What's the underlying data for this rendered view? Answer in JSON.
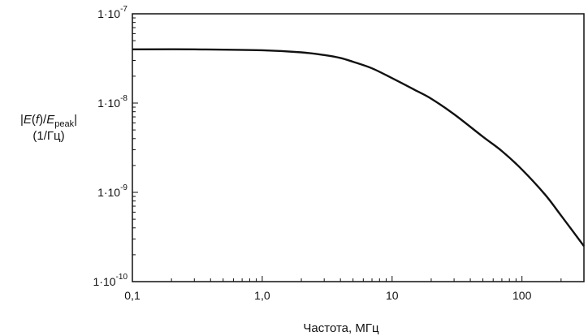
{
  "chart_data": {
    "type": "line",
    "xscale": "log",
    "yscale": "log",
    "xlim": [
      0.1,
      300
    ],
    "ylim": [
      1e-10,
      1e-07
    ],
    "xlabel": "Частота, МГц",
    "ylabel": {
      "line1_E": "E",
      "line1_f": "f",
      "line1_peak_E": "E",
      "line1_sub": "peak",
      "line2": "(1/Гц)"
    },
    "x_ticks": [
      {
        "value": 0.1,
        "label": "0,1"
      },
      {
        "value": 1,
        "label": "1,0"
      },
      {
        "value": 10,
        "label": "10"
      },
      {
        "value": 100,
        "label": "100"
      }
    ],
    "y_ticks": [
      {
        "value": 1e-10,
        "mant": "1·10",
        "exp": "-10"
      },
      {
        "value": 1e-09,
        "mant": "1·10",
        "exp": "-9"
      },
      {
        "value": 1e-08,
        "mant": "1·10",
        "exp": "-8"
      },
      {
        "value": 1e-07,
        "mant": "1·10",
        "exp": "-7"
      }
    ],
    "grid": false,
    "series": [
      {
        "color": "#111111",
        "x": [
          0.1,
          0.3,
          1.0,
          2.0,
          3.0,
          4.0,
          5.0,
          7.0,
          10,
          15,
          20,
          30,
          50,
          70,
          100,
          150,
          200,
          300
        ],
        "y": [
          4e-08,
          4e-08,
          3.9e-08,
          3.7e-08,
          3.45e-08,
          3.2e-08,
          2.9e-08,
          2.45e-08,
          1.9e-08,
          1.4e-08,
          1.12e-08,
          7.5e-09,
          4.2e-09,
          2.9e-09,
          1.8e-09,
          9.5e-10,
          5.5e-10,
          2.5e-10
        ]
      }
    ]
  }
}
